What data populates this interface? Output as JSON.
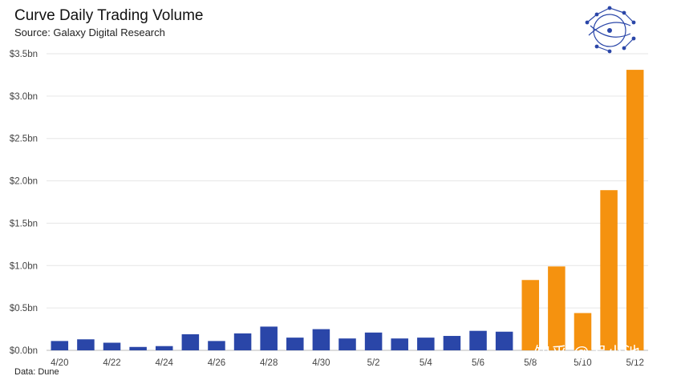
{
  "header": {
    "title": "Curve Daily Trading Volume",
    "subtitle": "Source: Galaxy Digital Research"
  },
  "footer": {
    "source_note": "Data: Dune"
  },
  "watermark": {
    "text": "知乎 @罗小池"
  },
  "logo": {
    "icon": "galaxy-network-globe-icon",
    "color": "#2a46a8"
  },
  "colors": {
    "base": "#2a46a8",
    "highlight": "#f5920f",
    "grid": "#e6e6e6",
    "axis": "#bbbbbb"
  },
  "chart_data": {
    "type": "bar",
    "title": "Curve Daily Trading Volume",
    "subtitle": "Source: Galaxy Digital Research",
    "xlabel": "",
    "ylabel": "",
    "ylim": [
      0,
      3.5
    ],
    "y_ticks": [
      0,
      0.5,
      1.0,
      1.5,
      2.0,
      2.5,
      3.0,
      3.5
    ],
    "y_tick_labels": [
      "$0.0bn",
      "$0.5bn",
      "$1.0bn",
      "$1.5bn",
      "$2.0bn",
      "$2.5bn",
      "$3.0bn",
      "$3.5bn"
    ],
    "grid": true,
    "categories": [
      "4/20",
      "4/21",
      "4/22",
      "4/23",
      "4/24",
      "4/25",
      "4/26",
      "4/27",
      "4/28",
      "4/29",
      "4/30",
      "5/1",
      "5/2",
      "5/3",
      "5/4",
      "5/5",
      "5/6",
      "5/7",
      "5/8",
      "5/9",
      "5/10",
      "5/11",
      "5/12"
    ],
    "x_tick_labels": [
      "4/20",
      "4/22",
      "4/24",
      "4/26",
      "4/28",
      "4/30",
      "5/2",
      "5/4",
      "5/6",
      "5/8",
      "5/10",
      "5/12"
    ],
    "values": [
      0.11,
      0.13,
      0.09,
      0.04,
      0.05,
      0.19,
      0.11,
      0.2,
      0.28,
      0.15,
      0.25,
      0.14,
      0.21,
      0.14,
      0.15,
      0.17,
      0.23,
      0.22,
      0.83,
      0.99,
      0.44,
      1.89,
      3.31
    ],
    "highlight_from": "5/8"
  }
}
